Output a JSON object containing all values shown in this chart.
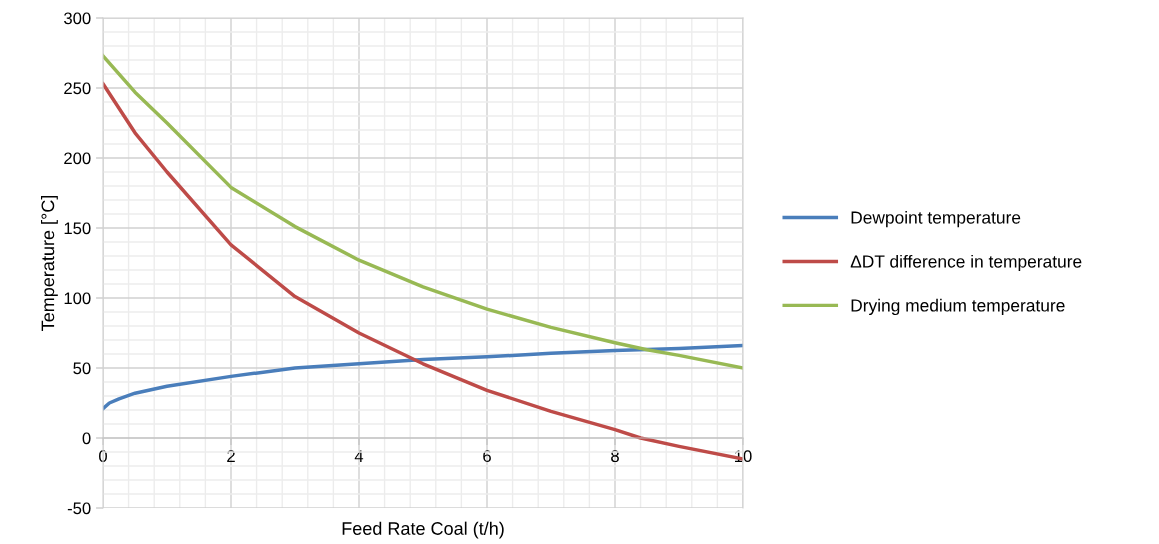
{
  "chart_data": {
    "type": "line",
    "xlabel": "Feed Rate Coal (t/h)",
    "ylabel": "Temperature [°C]",
    "xlim": [
      0,
      10
    ],
    "xticks": [
      0,
      2,
      4,
      6,
      8,
      10
    ],
    "ylim": [
      -50,
      300
    ],
    "yticks": [
      -50,
      0,
      50,
      100,
      150,
      200,
      250,
      300
    ],
    "grid": true,
    "legend": "right",
    "marker": "none",
    "line_style": "solid",
    "series": [
      {
        "name": "Dewpoint temperature",
        "color": "#4a7ebb",
        "x": [
          0,
          0.1,
          0.25,
          0.5,
          1,
          2,
          3,
          4,
          5,
          6,
          7,
          8,
          9,
          10
        ],
        "values": [
          21,
          25,
          28,
          32,
          37,
          44,
          50,
          53,
          56,
          58,
          60.5,
          62.5,
          64,
          66
        ]
      },
      {
        "name": "ΔDT difference in temperature",
        "color": "#be4b48",
        "x": [
          0,
          0.5,
          1,
          2,
          3,
          4,
          5,
          6,
          7,
          8,
          8.4,
          9,
          10
        ],
        "values": [
          253,
          218,
          190,
          138,
          101,
          75,
          53,
          34,
          19,
          6,
          0,
          -6,
          -15
        ]
      },
      {
        "name": "Drying medium temperature",
        "color": "#98b954",
        "x": [
          0,
          0.5,
          1,
          2,
          3,
          4,
          5,
          6,
          7,
          8,
          8.5,
          9,
          10
        ],
        "values": [
          273,
          247,
          225,
          179,
          151,
          127,
          108,
          92,
          79,
          68,
          63,
          59,
          50
        ]
      }
    ]
  }
}
